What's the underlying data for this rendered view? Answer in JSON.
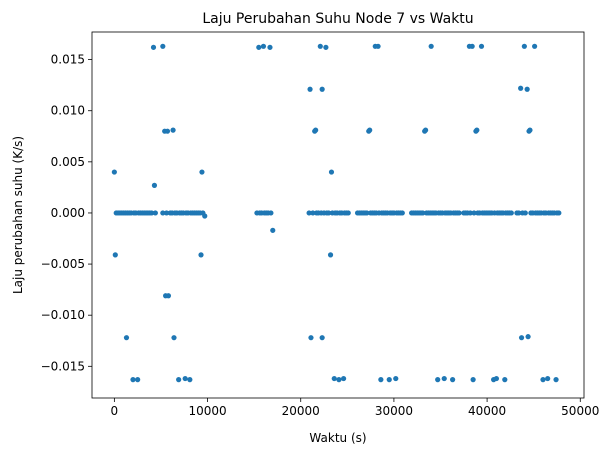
{
  "chart_data": {
    "type": "scatter",
    "title": "Laju Perubahan Suhu Node 7 vs Waktu",
    "xlabel": "Waktu (s)",
    "ylabel": "Laju perubahan suhu (K/s)",
    "xlim": [
      -2400,
      50400
    ],
    "ylim": [
      -0.0181,
      0.0177
    ],
    "xticks": [
      0,
      10000,
      20000,
      30000,
      40000,
      50000
    ],
    "xtick_labels": [
      "0",
      "10000",
      "20000",
      "30000",
      "40000",
      "50000"
    ],
    "yticks": [
      -0.015,
      -0.01,
      -0.005,
      0.0,
      0.005,
      0.01,
      0.015
    ],
    "ytick_labels": [
      "−0.015",
      "−0.010",
      "−0.005",
      "0.000",
      "0.005",
      "0.010",
      "0.015"
    ],
    "grid": false,
    "marker_color": "#1f77b4",
    "points": [
      [
        0,
        0.004
      ],
      [
        100,
        -0.0041
      ],
      [
        200,
        0
      ],
      [
        400,
        0
      ],
      [
        600,
        0
      ],
      [
        800,
        0
      ],
      [
        1000,
        0
      ],
      [
        1200,
        0
      ],
      [
        1300,
        -0.0122
      ],
      [
        1400,
        0
      ],
      [
        1600,
        0
      ],
      [
        1800,
        0
      ],
      [
        2000,
        -0.0163
      ],
      [
        2100,
        0
      ],
      [
        2300,
        0
      ],
      [
        2500,
        -0.0163
      ],
      [
        2600,
        0
      ],
      [
        2800,
        0
      ],
      [
        3000,
        0
      ],
      [
        3200,
        0
      ],
      [
        3400,
        0
      ],
      [
        3600,
        0
      ],
      [
        3800,
        0
      ],
      [
        4000,
        0
      ],
      [
        4200,
        0.0162
      ],
      [
        4300,
        0.0027
      ],
      [
        4400,
        0
      ],
      [
        5200,
        0.0163
      ],
      [
        5200,
        0
      ],
      [
        5400,
        0.008
      ],
      [
        5500,
        -0.0081
      ],
      [
        5600,
        0
      ],
      [
        5700,
        0.008
      ],
      [
        5800,
        -0.0081
      ],
      [
        6000,
        0
      ],
      [
        6200,
        0
      ],
      [
        6300,
        0.0081
      ],
      [
        6400,
        -0.0122
      ],
      [
        6500,
        0
      ],
      [
        6700,
        0
      ],
      [
        6900,
        -0.0163
      ],
      [
        7000,
        0
      ],
      [
        7200,
        0
      ],
      [
        7400,
        0
      ],
      [
        7600,
        -0.0162
      ],
      [
        7700,
        0
      ],
      [
        7900,
        0
      ],
      [
        8100,
        -0.0163
      ],
      [
        8200,
        0
      ],
      [
        8400,
        0
      ],
      [
        8600,
        0
      ],
      [
        8800,
        0
      ],
      [
        9000,
        0
      ],
      [
        9200,
        0
      ],
      [
        9300,
        -0.0041
      ],
      [
        9400,
        0.004
      ],
      [
        9500,
        0
      ],
      [
        9700,
        -0.0003
      ],
      [
        15300,
        0
      ],
      [
        15500,
        0.0162
      ],
      [
        15600,
        0
      ],
      [
        15800,
        0
      ],
      [
        16000,
        0.0163
      ],
      [
        16100,
        0
      ],
      [
        16300,
        0
      ],
      [
        16500,
        0
      ],
      [
        16700,
        0.0162
      ],
      [
        16800,
        0
      ],
      [
        17000,
        -0.0017
      ],
      [
        20900,
        0
      ],
      [
        21000,
        0.0121
      ],
      [
        21100,
        -0.0122
      ],
      [
        21300,
        0
      ],
      [
        21500,
        0.008
      ],
      [
        21600,
        0.0081
      ],
      [
        21700,
        0
      ],
      [
        21900,
        0
      ],
      [
        22100,
        0.0163
      ],
      [
        22200,
        0
      ],
      [
        22300,
        0.0121
      ],
      [
        22300,
        -0.0122
      ],
      [
        22500,
        0
      ],
      [
        22700,
        0.0162
      ],
      [
        22800,
        0
      ],
      [
        23000,
        0
      ],
      [
        23200,
        -0.0041
      ],
      [
        23300,
        0.004
      ],
      [
        23400,
        0
      ],
      [
        23600,
        -0.0162
      ],
      [
        23700,
        0
      ],
      [
        23900,
        0
      ],
      [
        24100,
        -0.0163
      ],
      [
        24200,
        0
      ],
      [
        24400,
        0
      ],
      [
        24600,
        -0.0162
      ],
      [
        24700,
        0
      ],
      [
        24900,
        0
      ],
      [
        25100,
        0
      ],
      [
        26100,
        0
      ],
      [
        26300,
        0
      ],
      [
        26500,
        0
      ],
      [
        26700,
        0
      ],
      [
        26900,
        0
      ],
      [
        27100,
        0
      ],
      [
        27300,
        0.008
      ],
      [
        27400,
        0.0081
      ],
      [
        27500,
        0
      ],
      [
        27700,
        0
      ],
      [
        27900,
        0
      ],
      [
        28000,
        0.0163
      ],
      [
        28100,
        0
      ],
      [
        28300,
        0.0163
      ],
      [
        28400,
        0
      ],
      [
        28600,
        -0.0163
      ],
      [
        28700,
        0
      ],
      [
        28900,
        0
      ],
      [
        29100,
        0
      ],
      [
        29300,
        0
      ],
      [
        29500,
        -0.0163
      ],
      [
        29600,
        0
      ],
      [
        29800,
        0
      ],
      [
        30000,
        0
      ],
      [
        30200,
        -0.0162
      ],
      [
        30300,
        0
      ],
      [
        30500,
        0
      ],
      [
        30700,
        0
      ],
      [
        30900,
        0
      ],
      [
        31900,
        0
      ],
      [
        32100,
        0
      ],
      [
        32300,
        0
      ],
      [
        32500,
        0
      ],
      [
        32700,
        0
      ],
      [
        32900,
        0
      ],
      [
        33100,
        0
      ],
      [
        33300,
        0.008
      ],
      [
        33400,
        0.0081
      ],
      [
        33500,
        0
      ],
      [
        33700,
        0
      ],
      [
        33900,
        0
      ],
      [
        34000,
        0.0163
      ],
      [
        34100,
        0
      ],
      [
        34300,
        0
      ],
      [
        34500,
        0
      ],
      [
        34700,
        -0.0163
      ],
      [
        34800,
        0
      ],
      [
        35000,
        0
      ],
      [
        35200,
        0
      ],
      [
        35400,
        -0.0162
      ],
      [
        35500,
        0
      ],
      [
        35700,
        0
      ],
      [
        35900,
        0
      ],
      [
        36100,
        0
      ],
      [
        36300,
        -0.0163
      ],
      [
        36400,
        0
      ],
      [
        36600,
        0
      ],
      [
        36800,
        0
      ],
      [
        37000,
        0
      ],
      [
        37500,
        0
      ],
      [
        37700,
        0
      ],
      [
        37900,
        0
      ],
      [
        38100,
        0.0163
      ],
      [
        38200,
        0
      ],
      [
        38400,
        0.0163
      ],
      [
        38500,
        -0.0163
      ],
      [
        38600,
        0
      ],
      [
        38800,
        0.008
      ],
      [
        38900,
        0.0081
      ],
      [
        39000,
        0
      ],
      [
        39200,
        0
      ],
      [
        39400,
        0.0163
      ],
      [
        39500,
        0
      ],
      [
        39700,
        0
      ],
      [
        39900,
        0
      ],
      [
        40100,
        0
      ],
      [
        40300,
        0
      ],
      [
        40500,
        0
      ],
      [
        40700,
        -0.0163
      ],
      [
        40800,
        0
      ],
      [
        41000,
        -0.0162
      ],
      [
        41100,
        0
      ],
      [
        41300,
        0
      ],
      [
        41500,
        0
      ],
      [
        41700,
        0
      ],
      [
        41900,
        -0.0163
      ],
      [
        42000,
        0
      ],
      [
        42200,
        0
      ],
      [
        42400,
        0
      ],
      [
        42600,
        0
      ],
      [
        43200,
        0
      ],
      [
        43400,
        0
      ],
      [
        43600,
        0.0122
      ],
      [
        43700,
        -0.0122
      ],
      [
        43800,
        0
      ],
      [
        44000,
        0.0163
      ],
      [
        44100,
        0
      ],
      [
        44300,
        0.0121
      ],
      [
        44400,
        -0.0121
      ],
      [
        44500,
        0.008
      ],
      [
        44600,
        0.0081
      ],
      [
        44700,
        0
      ],
      [
        44900,
        0
      ],
      [
        45100,
        0.0163
      ],
      [
        45200,
        0
      ],
      [
        45400,
        0
      ],
      [
        45600,
        0
      ],
      [
        45800,
        0
      ],
      [
        46000,
        -0.0163
      ],
      [
        46100,
        0
      ],
      [
        46300,
        0
      ],
      [
        46500,
        -0.0162
      ],
      [
        46600,
        0
      ],
      [
        46800,
        0
      ],
      [
        47000,
        0
      ],
      [
        47200,
        0
      ],
      [
        47400,
        -0.0163
      ],
      [
        47500,
        0
      ],
      [
        47700,
        0
      ]
    ]
  }
}
